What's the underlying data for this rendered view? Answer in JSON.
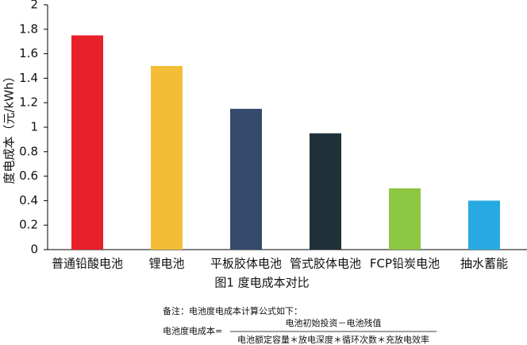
{
  "chart_data": {
    "type": "bar",
    "y_label": "度电成本（元/kWh）",
    "categories": [
      "普通铅酸电池",
      "锂电池",
      "平板胶体电池",
      "管式胶体电池",
      "FCP铅炭电池",
      "抽水蓄能"
    ],
    "values": [
      1.75,
      1.5,
      1.15,
      0.95,
      0.5,
      0.4
    ],
    "colors": [
      "#e8202a",
      "#f4bd38",
      "#364b6b",
      "#1f3039",
      "#8dc641",
      "#27aae1"
    ],
    "ylim": [
      0,
      2
    ],
    "yticks": [
      0,
      0.2,
      0.4,
      0.6,
      0.8,
      1,
      1.2,
      1.4,
      1.6,
      1.8,
      2
    ],
    "grid": false,
    "caption": "图1 度电成本对比",
    "note": "备注：电池度电成本计算公式如下：",
    "formula": {
      "lhs": "电池度电成本=",
      "numerator": "电池初始投资－电池残值",
      "denominator": "电池额定容量＊放电深度＊循环次数＊充放电效率"
    }
  }
}
